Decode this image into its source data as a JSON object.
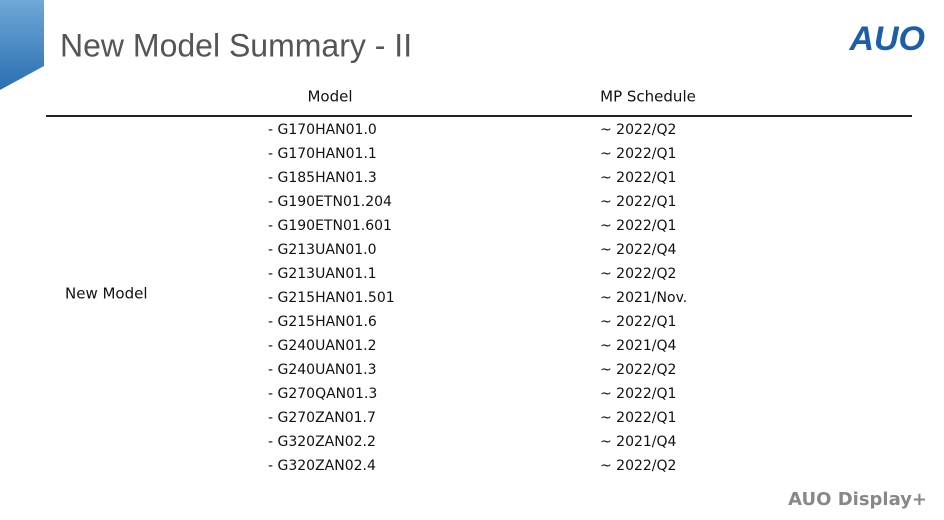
{
  "header": {
    "title": "New Model Summary - II",
    "logo": "AUO"
  },
  "table": {
    "columns": [
      "Model",
      "MP Schedule"
    ],
    "group_label": "New Model",
    "rows": [
      [
        "- G170HAN01.0",
        "~ 2022/Q2"
      ],
      [
        "- G170HAN01.1",
        "~ 2022/Q1"
      ],
      [
        "- G185HAN01.3",
        "~ 2022/Q1"
      ],
      [
        "- G190ETN01.204",
        "~ 2022/Q1"
      ],
      [
        "- G190ETN01.601",
        "~ 2022/Q1"
      ],
      [
        "- G213UAN01.0",
        "~ 2022/Q4"
      ],
      [
        "- G213UAN01.1",
        "~ 2022/Q2"
      ],
      [
        "- G215HAN01.501",
        "~ 2021/Nov."
      ],
      [
        "- G215HAN01.6",
        "~ 2022/Q1"
      ],
      [
        "- G240UAN01.2",
        "~ 2021/Q4"
      ],
      [
        "- G240UAN01.3",
        "~ 2022/Q2"
      ],
      [
        "- G270QAN01.3",
        "~ 2022/Q1"
      ],
      [
        "- G270ZAN01.7",
        "~ 2022/Q1"
      ],
      [
        "- G320ZAN02.2",
        "~ 2021/Q4"
      ],
      [
        "- G320ZAN02.4",
        "~ 2022/Q2"
      ]
    ]
  },
  "footer": {
    "brand": "AUO Display+"
  }
}
